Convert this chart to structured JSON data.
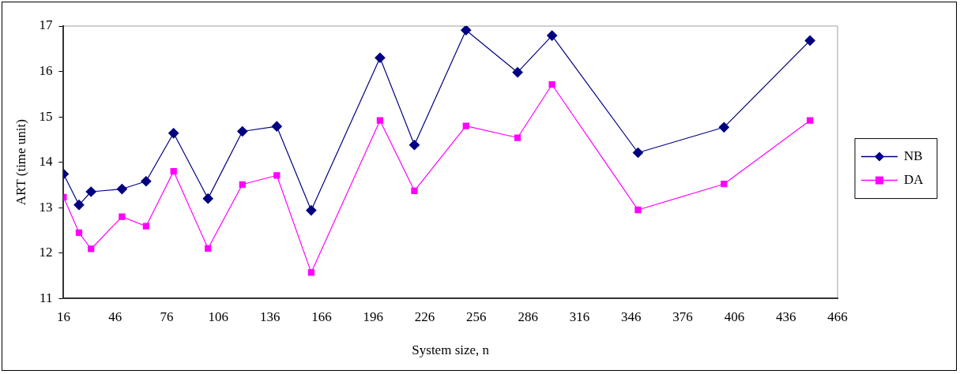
{
  "chart_data": {
    "type": "line",
    "xlabel": "System size, n",
    "ylabel": "ART (time unit)",
    "x": [
      16,
      25,
      32,
      50,
      64,
      80,
      100,
      120,
      140,
      160,
      200,
      220,
      250,
      280,
      300,
      350,
      400,
      450
    ],
    "series": [
      {
        "name": "NB",
        "color": "#000080",
        "marker": "diamond",
        "values": [
          13.74,
          13.06,
          13.35,
          13.41,
          13.58,
          14.64,
          13.2,
          14.68,
          14.79,
          12.94,
          16.3,
          14.38,
          16.91,
          15.98,
          16.79,
          14.21,
          14.77,
          16.68
        ]
      },
      {
        "name": "DA",
        "color": "#ff00ff",
        "marker": "square",
        "values": [
          13.23,
          12.45,
          12.09,
          12.8,
          12.59,
          13.8,
          12.1,
          13.51,
          13.71,
          11.57,
          14.92,
          13.37,
          14.8,
          14.54,
          15.71,
          12.95,
          13.52,
          14.92
        ]
      }
    ],
    "xlim": [
      16,
      466
    ],
    "xticks": [
      16,
      46,
      76,
      106,
      136,
      166,
      196,
      226,
      256,
      286,
      316,
      346,
      376,
      406,
      436,
      466
    ],
    "ylim": [
      11,
      17
    ],
    "yticks": [
      11,
      12,
      13,
      14,
      15,
      16,
      17
    ],
    "grid": false,
    "legend": "right",
    "line_style": "solid"
  }
}
